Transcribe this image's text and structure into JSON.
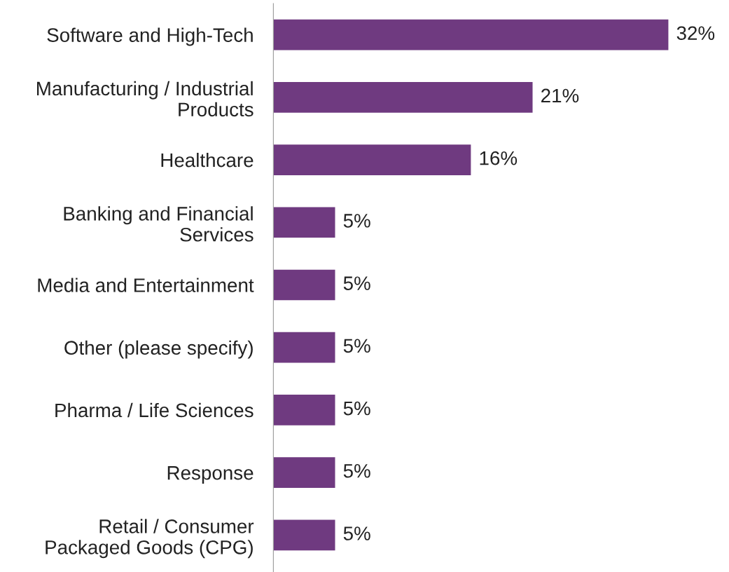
{
  "chart_data": {
    "type": "bar",
    "orientation": "horizontal",
    "categories": [
      "Software and High-Tech",
      "Manufacturing / Industrial\nProducts",
      "Healthcare",
      "Banking and Financial\nServices",
      "Media and Entertainment",
      "Other (please specify)",
      "Pharma / Life Sciences",
      "Response",
      "Retail / Consumer\nPackaged Goods (CPG)"
    ],
    "values": [
      32,
      21,
      16,
      5,
      5,
      5,
      5,
      5,
      5
    ],
    "value_labels": [
      "32%",
      "21%",
      "16%",
      "5%",
      "5%",
      "5%",
      "5%",
      "5%",
      "5%"
    ],
    "color": "#6f3a80",
    "grid": false,
    "legend": false
  }
}
